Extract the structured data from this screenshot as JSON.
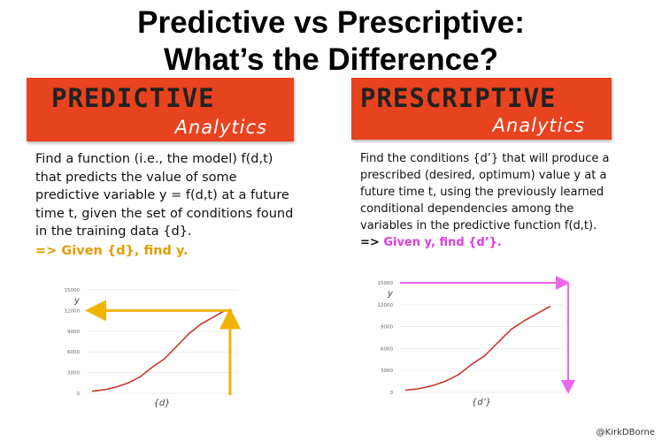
{
  "title_lines": [
    "Predictive vs Prescriptive:",
    "What’s the Difference?"
  ],
  "panels": [
    {
      "banner": "PREDICTIVE",
      "banner_sub": "Analytics",
      "body_lines": [
        "Find a function (i.e., the model) f(d,t)",
        "that predicts the value of some",
        "predictive variable y = f(d,t) at a future",
        "time t, given the set of conditions found",
        "in the training data {d}."
      ],
      "rule_prefix": "=>",
      "rule": "Given {d}, find y.",
      "chart": {
        "type": "line",
        "ylim": [
          0,
          15000
        ],
        "yticks": [
          0,
          3000,
          6000,
          9000,
          12000,
          15000
        ],
        "y_label": "y",
        "x_label": "{d}",
        "color": "#c8352c",
        "values": [
          300,
          500,
          900,
          1500,
          2400,
          3800,
          5000,
          6800,
          8600,
          10000,
          11000,
          12000
        ]
      }
    },
    {
      "banner": "PRESCRIPTIVE",
      "banner_sub": "Analytics",
      "body_lines": [
        "Find the conditions {d’} that will produce a",
        "prescribed (desired, optimum) value y at a",
        "future time t, using the previously learned",
        "conditional dependencies among the",
        "variables in the predictive function f(d,t)."
      ],
      "rule_prefix": "=>",
      "rule": "Given y, find {d’}.",
      "chart": {
        "type": "line",
        "ylim": [
          0,
          15000
        ],
        "yticks": [
          0,
          3000,
          6000,
          9000,
          12000,
          15000
        ],
        "y_label": "y",
        "x_label": "{d’}",
        "color": "#c8352c",
        "values": [
          300,
          500,
          900,
          1500,
          2400,
          3800,
          5000,
          6800,
          8600,
          9800,
          10800,
          11800
        ]
      }
    }
  ],
  "credit": "@KirkDBorne"
}
